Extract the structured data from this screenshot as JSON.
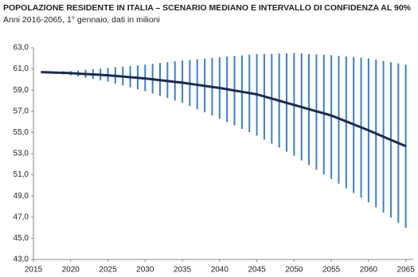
{
  "chart_data": {
    "type": "line",
    "title": "POPOLAZIONE RESIDENTE IN ITALIA – SCENARIO MEDIANO E INTERVALLO DI CONFIDENZA AL 90%",
    "subtitle": "Anni 2016-2065, 1° gennaio, dati in milioni",
    "x": [
      2016,
      2017,
      2018,
      2019,
      2020,
      2021,
      2022,
      2023,
      2024,
      2025,
      2026,
      2027,
      2028,
      2029,
      2030,
      2031,
      2032,
      2033,
      2034,
      2035,
      2036,
      2037,
      2038,
      2039,
      2040,
      2041,
      2042,
      2043,
      2044,
      2045,
      2046,
      2047,
      2048,
      2049,
      2050,
      2051,
      2052,
      2053,
      2054,
      2055,
      2056,
      2057,
      2058,
      2059,
      2060,
      2061,
      2062,
      2063,
      2064,
      2065
    ],
    "values": [
      60.7,
      60.68,
      60.65,
      60.63,
      60.6,
      60.56,
      60.52,
      60.48,
      60.44,
      60.4,
      60.34,
      60.28,
      60.22,
      60.16,
      60.1,
      60.02,
      59.94,
      59.86,
      59.78,
      59.7,
      59.6,
      59.5,
      59.4,
      59.3,
      59.2,
      59.08,
      58.96,
      58.84,
      58.72,
      58.6,
      58.4,
      58.2,
      58.0,
      57.8,
      57.6,
      57.4,
      57.2,
      57.0,
      56.8,
      56.6,
      56.32,
      56.04,
      55.76,
      55.48,
      55.2,
      54.9,
      54.6,
      54.3,
      54.0,
      53.7
    ],
    "upper": [
      60.7,
      60.73,
      60.75,
      60.78,
      60.8,
      60.86,
      60.92,
      60.98,
      61.04,
      61.1,
      61.16,
      61.22,
      61.28,
      61.34,
      61.4,
      61.48,
      61.56,
      61.64,
      61.72,
      61.8,
      61.86,
      61.92,
      61.98,
      62.04,
      62.1,
      62.16,
      62.22,
      62.28,
      62.34,
      62.4,
      62.42,
      62.44,
      62.46,
      62.48,
      62.5,
      62.46,
      62.42,
      62.38,
      62.34,
      62.3,
      62.24,
      62.18,
      62.12,
      62.06,
      62.0,
      61.88,
      61.76,
      61.64,
      61.52,
      61.4
    ],
    "lower": [
      60.7,
      60.63,
      60.55,
      60.48,
      60.4,
      60.28,
      60.16,
      60.04,
      59.92,
      59.8,
      59.62,
      59.44,
      59.26,
      59.08,
      58.9,
      58.68,
      58.46,
      58.24,
      58.02,
      57.8,
      57.5,
      57.2,
      56.9,
      56.6,
      56.3,
      55.98,
      55.66,
      55.34,
      55.02,
      54.7,
      54.32,
      53.94,
      53.56,
      53.18,
      52.8,
      52.36,
      51.92,
      51.48,
      51.04,
      50.6,
      50.16,
      49.72,
      49.28,
      48.84,
      48.4,
      47.92,
      47.44,
      46.96,
      46.48,
      46.0
    ],
    "color": "#1c2b4d",
    "interval_color": "#3f7fc6",
    "xlim": [
      2015,
      2066
    ],
    "xticks": [
      2015,
      2020,
      2025,
      2030,
      2035,
      2040,
      2045,
      2050,
      2055,
      2060,
      2065
    ],
    "ylim": [
      43,
      63
    ],
    "yticks": [
      {
        "value": 43,
        "label": "43,0"
      },
      {
        "value": 45,
        "label": "45,0"
      },
      {
        "value": 47,
        "label": "47,0"
      },
      {
        "value": 49,
        "label": "49,0"
      },
      {
        "value": 51,
        "label": "51,0"
      },
      {
        "value": 53,
        "label": "53,0"
      },
      {
        "value": 55,
        "label": "55,0"
      },
      {
        "value": 57,
        "label": "57,0"
      },
      {
        "value": 59,
        "label": "59,0"
      },
      {
        "value": 61,
        "label": "61,0"
      },
      {
        "value": 63,
        "label": "63,0"
      }
    ],
    "grid": false
  }
}
